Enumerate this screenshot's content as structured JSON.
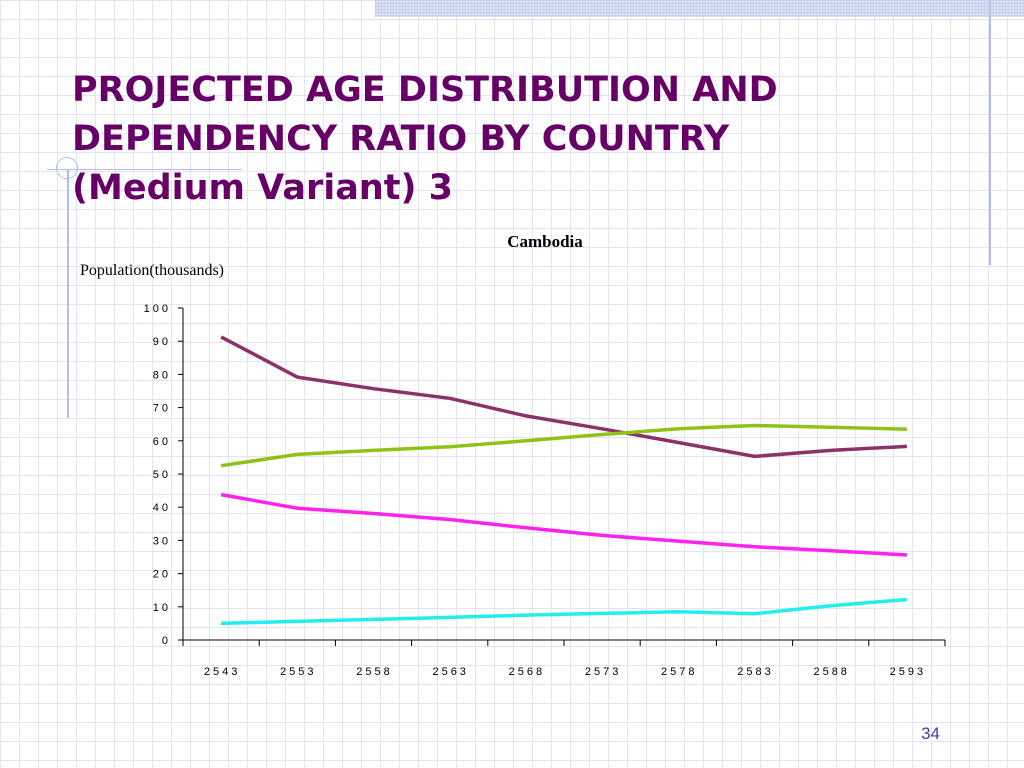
{
  "slide": {
    "title_lines": [
      "PROJECTED AGE DISTRIBUTION AND",
      "DEPENDENCY RATIO BY COUNTRY",
      "(Medium Variant) 3"
    ],
    "page_number": "34",
    "title_color": "#660066",
    "page_number_color": "#4040a8"
  },
  "chart_data": {
    "type": "line",
    "title": "Cambodia",
    "ylabel": "Population(thousands)",
    "xlabel": "",
    "categories": [
      "2543",
      "2553",
      "2558",
      "2563",
      "2568",
      "2573",
      "2578",
      "2583",
      "2588",
      "2593"
    ],
    "ylim": [
      0,
      100
    ],
    "y_ticks": [
      "0",
      "10",
      "20",
      "30",
      "40",
      "50",
      "60",
      "70",
      "80",
      "90",
      "100"
    ],
    "grid": false,
    "legend": "none",
    "series": [
      {
        "color": "#8b3366",
        "values": [
          91.3,
          79.2,
          75.7,
          72.8,
          67.5,
          63.6,
          59.5,
          55.3,
          57.1,
          58.3
        ]
      },
      {
        "color": "#8cc316",
        "values": [
          52.5,
          55.9,
          57.1,
          58.2,
          60.0,
          61.9,
          63.6,
          64.6,
          64.1,
          63.5
        ]
      },
      {
        "color": "#ff22ee",
        "values": [
          43.8,
          39.7,
          38.1,
          36.3,
          33.8,
          31.5,
          29.8,
          28.1,
          26.9,
          25.6
        ]
      },
      {
        "color": "#22eeee",
        "values": [
          5.0,
          5.6,
          6.2,
          6.8,
          7.5,
          8.0,
          8.5,
          7.9,
          10.3,
          12.2
        ]
      }
    ]
  }
}
